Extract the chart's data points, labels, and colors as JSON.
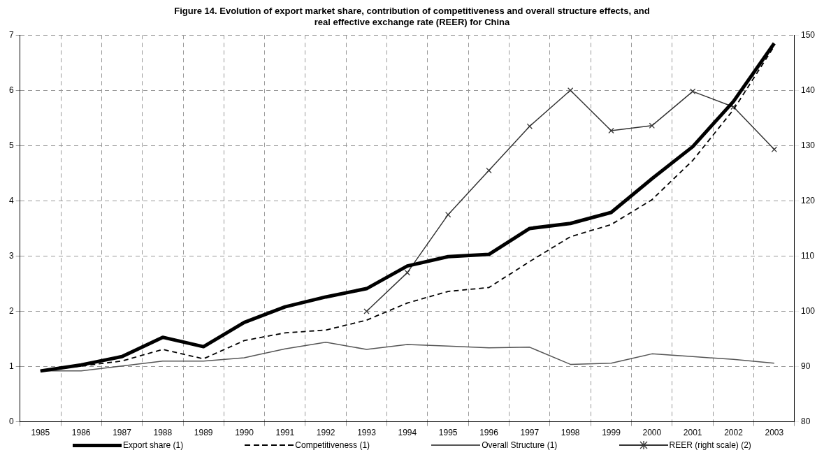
{
  "chart_data": {
    "type": "line",
    "title": "Figure 14.  Evolution of export market share, contribution of competitiveness and overall structure effects, and real effective exchange rate (REER) for China",
    "categories": [
      "1985",
      "1986",
      "1987",
      "1988",
      "1989",
      "1990",
      "1991",
      "1992",
      "1993",
      "1994",
      "1995",
      "1996",
      "1997",
      "1998",
      "1999",
      "2000",
      "2001",
      "2002",
      "2003"
    ],
    "series": [
      {
        "name": "Export share (1)",
        "color": "#000000",
        "line_style": "solid",
        "marker": "none",
        "values": [
          0.92,
          1.03,
          1.18,
          1.53,
          1.36,
          1.8,
          2.08,
          2.26,
          2.41,
          2.82,
          2.99,
          3.03,
          3.5,
          3.59,
          3.79,
          4.4,
          4.98,
          5.8,
          6.85
        ]
      },
      {
        "name": "Competitiveness (1)",
        "color": "#000000",
        "line_style": "dashed",
        "marker": "none",
        "values": [
          0.92,
          1.01,
          1.1,
          1.31,
          1.14,
          1.47,
          1.61,
          1.66,
          1.84,
          2.15,
          2.36,
          2.43,
          2.9,
          3.35,
          3.57,
          4.02,
          4.73,
          5.65,
          6.8
        ]
      },
      {
        "name": "Overall Structure (1)",
        "color": "#555555",
        "line_style": "solid",
        "marker": "none",
        "values": [
          0.92,
          0.92,
          1.01,
          1.1,
          1.1,
          1.16,
          1.32,
          1.44,
          1.31,
          1.4,
          1.37,
          1.34,
          1.35,
          1.04,
          1.06,
          1.23,
          1.18,
          1.13,
          1.06
        ]
      },
      {
        "name": "REER (right scale) (2)",
        "color": "#333333",
        "line_style": "solid",
        "marker": "cross",
        "axis": "y2",
        "values": [
          null,
          null,
          null,
          null,
          null,
          null,
          null,
          null,
          100,
          107,
          117.5,
          125.5,
          133.5,
          140,
          132.7,
          133.6,
          139.8,
          137,
          129.3
        ]
      }
    ],
    "ylim": [
      0,
      7
    ],
    "yticks": [
      0,
      1,
      2,
      3,
      4,
      5,
      6,
      7
    ],
    "y2lim": [
      80,
      150
    ],
    "y2ticks": [
      80,
      90,
      100,
      110,
      120,
      130,
      140,
      150
    ],
    "grid": true,
    "legend": "bottom"
  }
}
